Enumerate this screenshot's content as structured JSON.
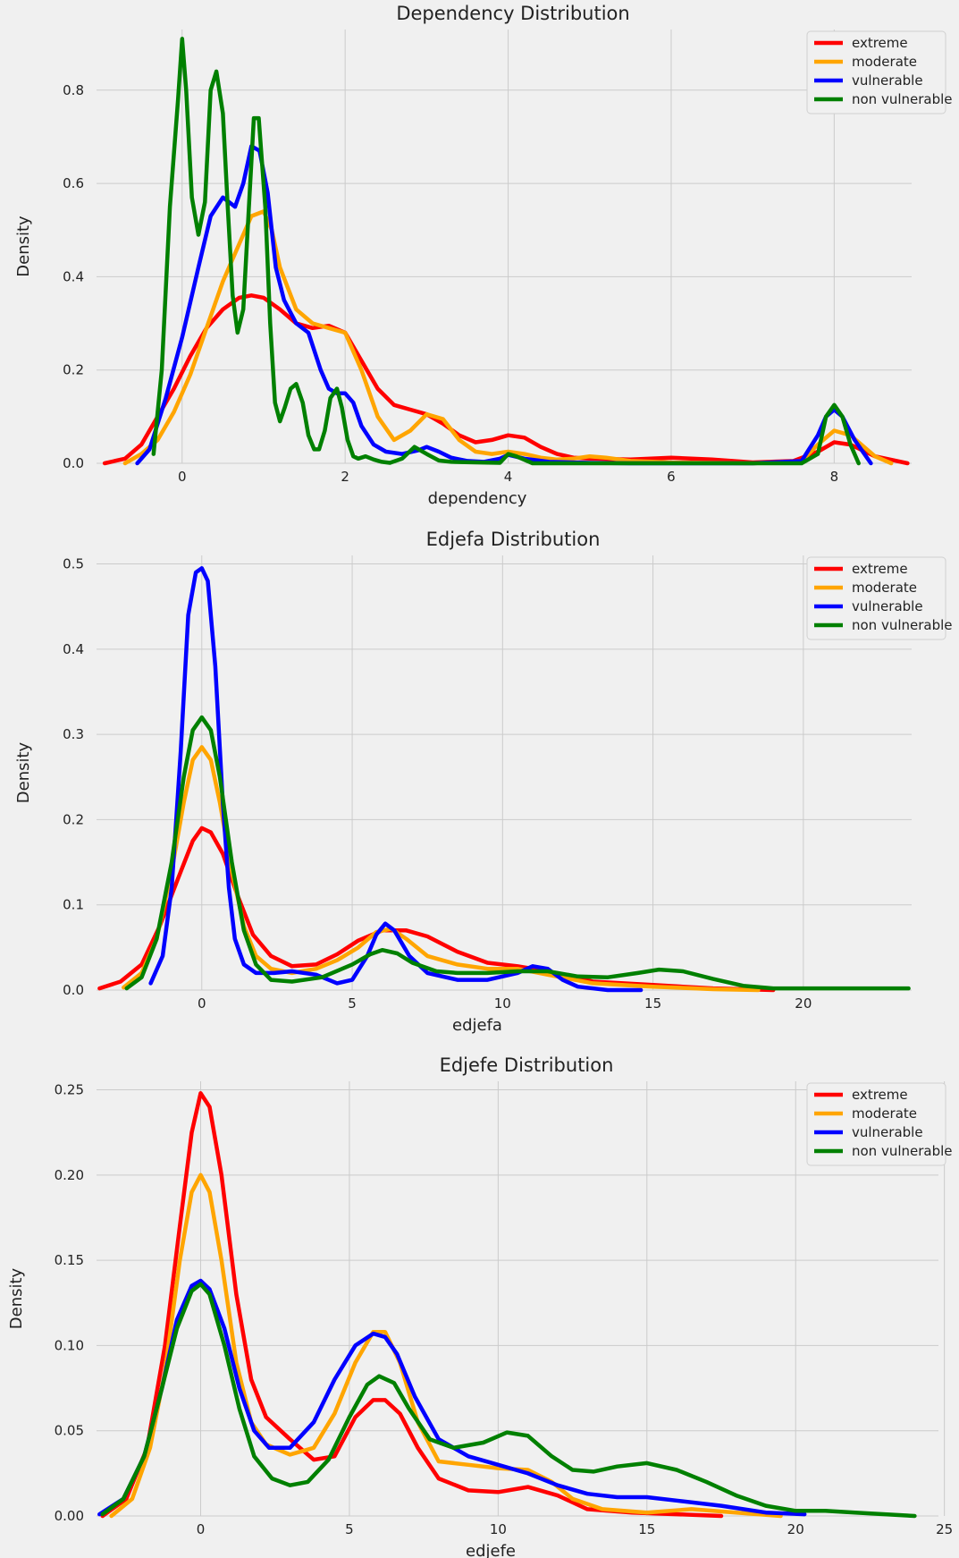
{
  "legend_labels": [
    "extreme",
    "moderate",
    "vulnerable",
    "non vulnerable"
  ],
  "series_colors": {
    "extreme": "#ff0000",
    "moderate": "#ffa500",
    "vulnerable": "#0000ff",
    "non vulnerable": "#008000"
  },
  "chart_data": [
    {
      "type": "line",
      "title": "Dependency Distribution",
      "xlabel": "dependency",
      "ylabel": "Density",
      "xlim": [
        -1.05,
        8.95
      ],
      "ylim": [
        0,
        0.93
      ],
      "xticks": [
        0,
        2,
        4,
        6,
        8
      ],
      "xtick_labels": [
        "0",
        "2",
        "4",
        "6",
        "8"
      ],
      "yticks": [
        0,
        0.2,
        0.4,
        0.6,
        0.8
      ],
      "ytick_labels": [
        "0.0",
        "0.2",
        "0.4",
        "0.6",
        "0.8"
      ],
      "grid": true,
      "legend": "top-right",
      "series": [
        {
          "name": "extreme",
          "x": [
            -0.95,
            -0.7,
            -0.5,
            -0.3,
            -0.1,
            0.1,
            0.3,
            0.5,
            0.7,
            0.85,
            1.0,
            1.2,
            1.4,
            1.6,
            1.8,
            2.0,
            2.2,
            2.4,
            2.6,
            2.8,
            3.0,
            3.2,
            3.4,
            3.6,
            3.8,
            4.0,
            4.2,
            4.4,
            4.6,
            4.8,
            5.0,
            5.5,
            6.0,
            6.5,
            7.0,
            7.5,
            7.8,
            8.0,
            8.2,
            8.5,
            8.9
          ],
          "y": [
            0.0,
            0.01,
            0.04,
            0.1,
            0.16,
            0.23,
            0.29,
            0.33,
            0.355,
            0.36,
            0.355,
            0.33,
            0.3,
            0.29,
            0.295,
            0.28,
            0.22,
            0.16,
            0.125,
            0.115,
            0.105,
            0.085,
            0.06,
            0.045,
            0.05,
            0.06,
            0.055,
            0.035,
            0.02,
            0.012,
            0.01,
            0.008,
            0.012,
            0.008,
            0.002,
            0.005,
            0.025,
            0.045,
            0.04,
            0.015,
            0.0
          ]
        },
        {
          "name": "moderate",
          "x": [
            -0.7,
            -0.5,
            -0.3,
            -0.1,
            0.1,
            0.3,
            0.5,
            0.7,
            0.85,
            1.0,
            1.1,
            1.2,
            1.4,
            1.6,
            1.8,
            2.0,
            2.2,
            2.4,
            2.6,
            2.8,
            3.0,
            3.2,
            3.4,
            3.6,
            3.8,
            4.0,
            4.2,
            4.4,
            4.6,
            4.8,
            5.0,
            5.2,
            5.5,
            6.0,
            7.0,
            7.6,
            7.8,
            8.0,
            8.2,
            8.5,
            8.7
          ],
          "y": [
            0.0,
            0.02,
            0.05,
            0.11,
            0.19,
            0.29,
            0.39,
            0.47,
            0.53,
            0.54,
            0.5,
            0.42,
            0.33,
            0.3,
            0.29,
            0.28,
            0.2,
            0.1,
            0.05,
            0.07,
            0.105,
            0.095,
            0.05,
            0.025,
            0.02,
            0.025,
            0.02,
            0.012,
            0.008,
            0.01,
            0.015,
            0.012,
            0.005,
            0.002,
            0.0,
            0.005,
            0.04,
            0.07,
            0.06,
            0.015,
            0.0
          ]
        },
        {
          "name": "vulnerable",
          "x": [
            -0.55,
            -0.4,
            -0.2,
            0.0,
            0.2,
            0.35,
            0.5,
            0.65,
            0.75,
            0.85,
            0.95,
            1.05,
            1.15,
            1.25,
            1.4,
            1.55,
            1.7,
            1.8,
            1.9,
            2.0,
            2.1,
            2.2,
            2.35,
            2.5,
            2.7,
            2.9,
            3.0,
            3.15,
            3.3,
            3.5,
            3.7,
            3.9,
            4.0,
            4.2,
            4.5,
            5.0,
            5.5,
            6.0,
            7.0,
            7.6,
            7.8,
            7.9,
            8.0,
            8.1,
            8.25,
            8.45
          ],
          "y": [
            0.0,
            0.03,
            0.14,
            0.27,
            0.42,
            0.53,
            0.57,
            0.55,
            0.6,
            0.68,
            0.67,
            0.58,
            0.42,
            0.35,
            0.3,
            0.28,
            0.2,
            0.16,
            0.15,
            0.15,
            0.13,
            0.08,
            0.04,
            0.025,
            0.02,
            0.028,
            0.035,
            0.025,
            0.012,
            0.005,
            0.003,
            0.01,
            0.018,
            0.01,
            0.003,
            0.001,
            0.0,
            0.0,
            0.0,
            0.005,
            0.06,
            0.1,
            0.115,
            0.1,
            0.05,
            0.0
          ]
        },
        {
          "name": "non vulnerable",
          "x": [
            -0.35,
            -0.25,
            -0.15,
            -0.05,
            0.0,
            0.05,
            0.12,
            0.2,
            0.28,
            0.35,
            0.42,
            0.5,
            0.56,
            0.62,
            0.68,
            0.75,
            0.82,
            0.88,
            0.94,
            1.02,
            1.08,
            1.14,
            1.2,
            1.26,
            1.33,
            1.4,
            1.48,
            1.55,
            1.62,
            1.68,
            1.75,
            1.82,
            1.9,
            1.96,
            2.03,
            2.1,
            2.16,
            2.25,
            2.35,
            2.45,
            2.55,
            2.7,
            2.85,
            3.0,
            3.15,
            3.3,
            3.6,
            3.9,
            4.0,
            4.1,
            4.3,
            7.6,
            7.8,
            7.9,
            8.0,
            8.1,
            8.2,
            8.3
          ],
          "y": [
            0.02,
            0.2,
            0.55,
            0.78,
            0.91,
            0.8,
            0.57,
            0.49,
            0.56,
            0.8,
            0.84,
            0.75,
            0.55,
            0.36,
            0.28,
            0.33,
            0.55,
            0.74,
            0.74,
            0.55,
            0.3,
            0.13,
            0.09,
            0.12,
            0.16,
            0.17,
            0.13,
            0.06,
            0.03,
            0.03,
            0.07,
            0.14,
            0.16,
            0.12,
            0.05,
            0.015,
            0.01,
            0.015,
            0.008,
            0.003,
            0.001,
            0.01,
            0.035,
            0.02,
            0.006,
            0.003,
            0.002,
            0.001,
            0.02,
            0.015,
            0.0,
            0.0,
            0.02,
            0.1,
            0.125,
            0.1,
            0.04,
            0.0
          ]
        }
      ]
    },
    {
      "type": "line",
      "title": "Edjefa Distribution",
      "xlabel": "edjefa",
      "ylabel": "Density",
      "xlim": [
        -3.5,
        23.6
      ],
      "ylim": [
        0,
        0.51
      ],
      "xticks": [
        0,
        5,
        10,
        15,
        20
      ],
      "xtick_labels": [
        "0",
        "5",
        "10",
        "15",
        "20"
      ],
      "yticks": [
        0,
        0.1,
        0.2,
        0.3,
        0.4,
        0.5
      ],
      "ytick_labels": [
        "0.0",
        "0.1",
        "0.2",
        "0.3",
        "0.4",
        "0.5"
      ],
      "grid": true,
      "legend": "top-right",
      "series": [
        {
          "name": "extreme",
          "x": [
            -3.4,
            -2.7,
            -2.0,
            -1.4,
            -0.8,
            -0.3,
            0.0,
            0.3,
            0.7,
            1.2,
            1.7,
            2.3,
            3.0,
            3.8,
            4.5,
            5.2,
            6.0,
            6.8,
            7.5,
            8.5,
            9.5,
            10.5,
            11.5,
            13.0,
            15.0,
            17.0,
            19.0
          ],
          "y": [
            0.002,
            0.01,
            0.03,
            0.075,
            0.13,
            0.175,
            0.19,
            0.185,
            0.16,
            0.11,
            0.065,
            0.04,
            0.028,
            0.03,
            0.042,
            0.058,
            0.07,
            0.07,
            0.063,
            0.045,
            0.032,
            0.028,
            0.022,
            0.01,
            0.006,
            0.002,
            0.0
          ]
        },
        {
          "name": "moderate",
          "x": [
            -2.6,
            -2.0,
            -1.5,
            -1.0,
            -0.6,
            -0.3,
            0.0,
            0.3,
            0.6,
            1.0,
            1.4,
            1.8,
            2.3,
            3.0,
            3.8,
            4.5,
            5.2,
            5.8,
            6.3,
            6.8,
            7.5,
            8.5,
            9.5,
            10.5,
            11.5,
            13.0,
            15.0,
            17.0,
            18.5
          ],
          "y": [
            0.003,
            0.02,
            0.06,
            0.14,
            0.22,
            0.27,
            0.285,
            0.27,
            0.22,
            0.14,
            0.075,
            0.04,
            0.025,
            0.02,
            0.025,
            0.035,
            0.05,
            0.068,
            0.072,
            0.06,
            0.04,
            0.03,
            0.025,
            0.025,
            0.018,
            0.008,
            0.004,
            0.001,
            0.0
          ]
        },
        {
          "name": "vulnerable",
          "x": [
            -1.7,
            -1.3,
            -1.0,
            -0.7,
            -0.45,
            -0.2,
            0.0,
            0.2,
            0.45,
            0.7,
            0.9,
            1.1,
            1.4,
            1.8,
            2.4,
            3.0,
            3.8,
            4.5,
            5.0,
            5.5,
            5.8,
            6.1,
            6.4,
            6.9,
            7.5,
            8.5,
            9.5,
            10.5,
            11.0,
            11.5,
            12.0,
            12.5,
            13.5,
            14.6
          ],
          "y": [
            0.008,
            0.04,
            0.12,
            0.28,
            0.44,
            0.49,
            0.495,
            0.48,
            0.38,
            0.22,
            0.12,
            0.06,
            0.03,
            0.02,
            0.02,
            0.022,
            0.018,
            0.008,
            0.012,
            0.04,
            0.065,
            0.078,
            0.07,
            0.04,
            0.02,
            0.012,
            0.012,
            0.02,
            0.028,
            0.025,
            0.012,
            0.004,
            0.0,
            0.0
          ]
        },
        {
          "name": "non vulnerable",
          "x": [
            -2.5,
            -2.0,
            -1.5,
            -1.0,
            -0.6,
            -0.3,
            0.0,
            0.3,
            0.6,
            1.0,
            1.4,
            1.8,
            2.3,
            3.0,
            4.0,
            5.0,
            5.6,
            6.0,
            6.5,
            7.0,
            7.8,
            8.5,
            9.5,
            10.5,
            11.5,
            12.5,
            13.5,
            14.5,
            15.2,
            16.0,
            17.0,
            18.0,
            19.0,
            20.0,
            21.5,
            23.5
          ],
          "y": [
            0.002,
            0.015,
            0.06,
            0.15,
            0.25,
            0.305,
            0.32,
            0.305,
            0.25,
            0.15,
            0.07,
            0.03,
            0.012,
            0.01,
            0.015,
            0.03,
            0.042,
            0.047,
            0.043,
            0.032,
            0.022,
            0.02,
            0.02,
            0.022,
            0.022,
            0.016,
            0.015,
            0.02,
            0.024,
            0.022,
            0.013,
            0.005,
            0.002,
            0.002,
            0.002,
            0.002
          ]
        }
      ]
    },
    {
      "type": "line",
      "title": "Edjefe Distribution",
      "xlabel": "edjefe",
      "ylabel": "Density",
      "xlim": [
        -3.5,
        24.8
      ],
      "ylim": [
        0,
        0.255
      ],
      "xticks": [
        0,
        5,
        10,
        15,
        20,
        25
      ],
      "xtick_labels": [
        "0",
        "5",
        "10",
        "15",
        "20",
        "25"
      ],
      "yticks": [
        0,
        0.05,
        0.1,
        0.15,
        0.2,
        0.25
      ],
      "ytick_labels": [
        "0.00",
        "0.05",
        "0.10",
        "0.15",
        "0.20",
        "0.25"
      ],
      "grid": true,
      "legend": "top-right",
      "series": [
        {
          "name": "extreme",
          "x": [
            -3.3,
            -2.5,
            -1.8,
            -1.2,
            -0.7,
            -0.3,
            0.0,
            0.3,
            0.7,
            1.2,
            1.7,
            2.2,
            3.0,
            3.8,
            4.5,
            5.2,
            5.8,
            6.2,
            6.7,
            7.3,
            8.0,
            9.0,
            10.0,
            11.0,
            12.0,
            13.0,
            14.5,
            16.0,
            17.5
          ],
          "y": [
            0.0,
            0.01,
            0.04,
            0.1,
            0.17,
            0.225,
            0.248,
            0.24,
            0.2,
            0.13,
            0.08,
            0.058,
            0.045,
            0.033,
            0.035,
            0.058,
            0.068,
            0.068,
            0.06,
            0.04,
            0.022,
            0.015,
            0.014,
            0.017,
            0.012,
            0.004,
            0.002,
            0.001,
            0.0
          ]
        },
        {
          "name": "moderate",
          "x": [
            -3.0,
            -2.3,
            -1.7,
            -1.2,
            -0.7,
            -0.3,
            0.0,
            0.3,
            0.7,
            1.2,
            1.7,
            2.2,
            3.0,
            3.8,
            4.5,
            5.2,
            5.8,
            6.2,
            6.7,
            7.3,
            8.0,
            9.0,
            10.0,
            11.0,
            11.8,
            12.5,
            13.5,
            15.0,
            16.5,
            18.0,
            19.5
          ],
          "y": [
            0.0,
            0.01,
            0.04,
            0.085,
            0.15,
            0.19,
            0.2,
            0.19,
            0.15,
            0.09,
            0.055,
            0.042,
            0.036,
            0.04,
            0.06,
            0.09,
            0.108,
            0.108,
            0.09,
            0.055,
            0.032,
            0.03,
            0.028,
            0.027,
            0.02,
            0.01,
            0.004,
            0.002,
            0.004,
            0.002,
            0.0
          ]
        },
        {
          "name": "vulnerable",
          "x": [
            -3.4,
            -2.6,
            -1.9,
            -1.3,
            -0.8,
            -0.3,
            0.0,
            0.3,
            0.8,
            1.3,
            1.8,
            2.3,
            3.0,
            3.8,
            4.5,
            5.2,
            5.8,
            6.2,
            6.6,
            7.2,
            8.0,
            9.0,
            10.0,
            11.0,
            12.0,
            13.0,
            14.0,
            15.0,
            16.0,
            17.5,
            19.0,
            20.3
          ],
          "y": [
            0.001,
            0.01,
            0.035,
            0.075,
            0.115,
            0.135,
            0.138,
            0.133,
            0.11,
            0.075,
            0.05,
            0.04,
            0.04,
            0.055,
            0.08,
            0.1,
            0.107,
            0.105,
            0.095,
            0.07,
            0.045,
            0.035,
            0.03,
            0.025,
            0.018,
            0.013,
            0.011,
            0.011,
            0.009,
            0.006,
            0.002,
            0.001
          ]
        },
        {
          "name": "non vulnerable",
          "x": [
            -3.3,
            -2.6,
            -1.9,
            -1.3,
            -0.8,
            -0.3,
            0.0,
            0.3,
            0.8,
            1.3,
            1.8,
            2.4,
            3.0,
            3.6,
            4.3,
            5.0,
            5.6,
            6.0,
            6.5,
            7.0,
            7.7,
            8.5,
            9.5,
            10.3,
            11.0,
            11.8,
            12.5,
            13.2,
            14.0,
            15.0,
            16.0,
            17.0,
            18.0,
            19.0,
            20.0,
            21.0,
            22.0,
            23.0,
            24.0
          ],
          "y": [
            0.001,
            0.01,
            0.035,
            0.075,
            0.11,
            0.132,
            0.136,
            0.13,
            0.1,
            0.063,
            0.035,
            0.022,
            0.018,
            0.02,
            0.033,
            0.058,
            0.077,
            0.082,
            0.078,
            0.063,
            0.045,
            0.04,
            0.043,
            0.049,
            0.047,
            0.035,
            0.027,
            0.026,
            0.029,
            0.031,
            0.027,
            0.02,
            0.012,
            0.006,
            0.003,
            0.003,
            0.002,
            0.001,
            0.0
          ]
        }
      ]
    }
  ]
}
